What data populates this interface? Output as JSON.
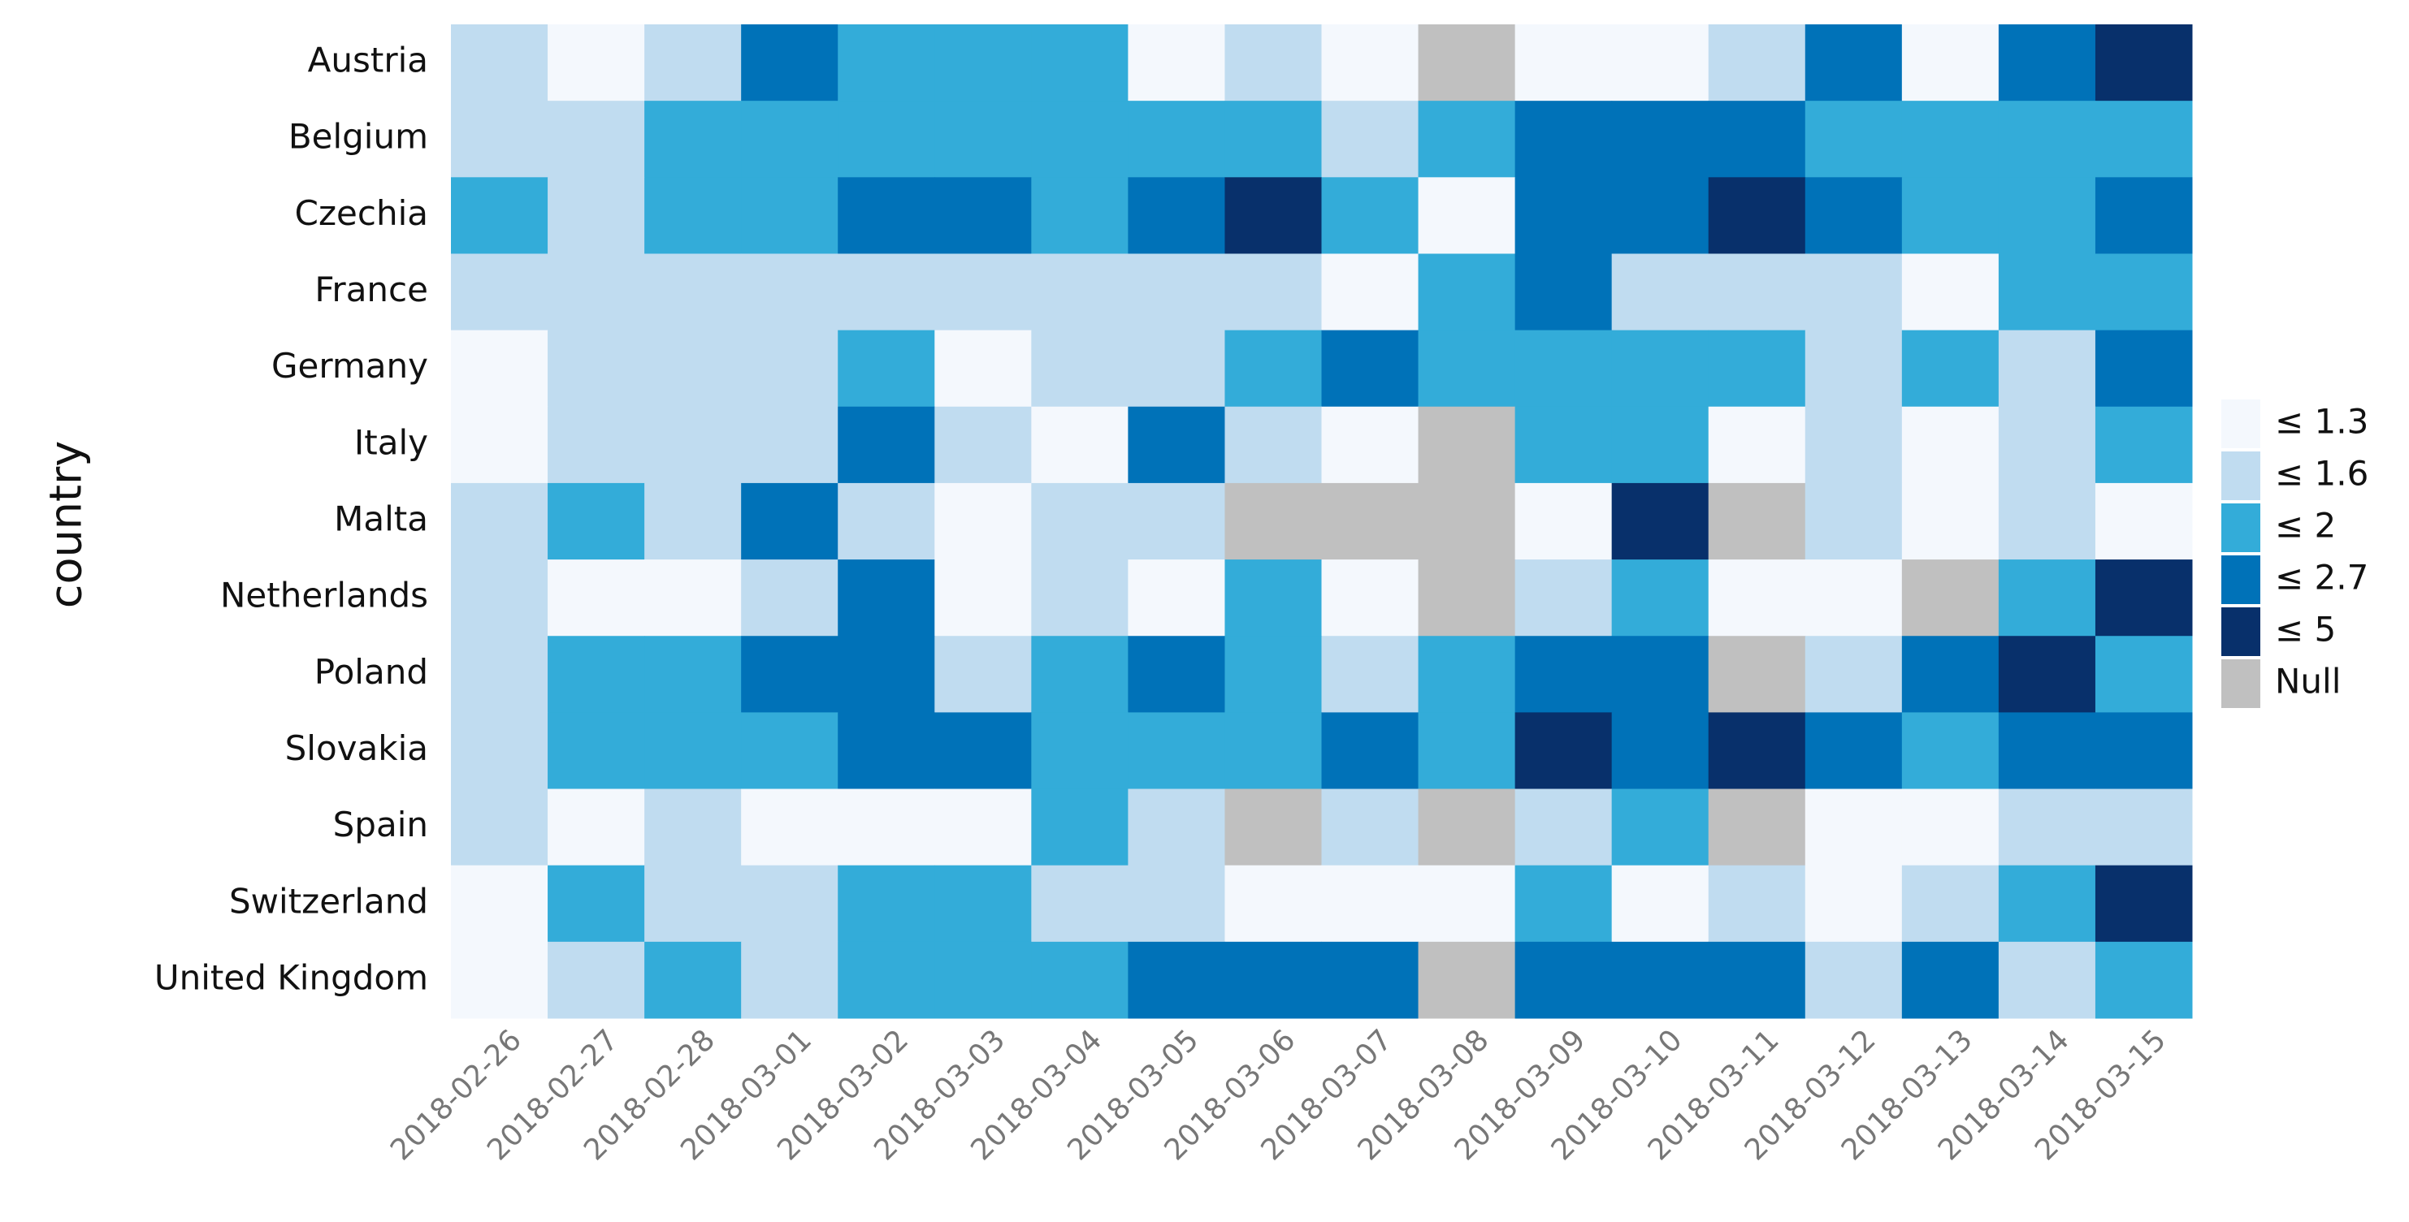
{
  "chart_data": {
    "type": "heatmap",
    "y_label": "country",
    "x": [
      "2018-02-26",
      "2018-02-27",
      "2018-02-28",
      "2018-03-01",
      "2018-03-02",
      "2018-03-03",
      "2018-03-04",
      "2018-03-05",
      "2018-03-06",
      "2018-03-07",
      "2018-03-08",
      "2018-03-09",
      "2018-03-10",
      "2018-03-11",
      "2018-03-12",
      "2018-03-13",
      "2018-03-14",
      "2018-03-15"
    ],
    "y": [
      "Austria",
      "Belgium",
      "Czechia",
      "France",
      "Germany",
      "Italy",
      "Malta",
      "Netherlands",
      "Poland",
      "Slovakia",
      "Spain",
      "Switzerland",
      "United Kingdom"
    ],
    "values": [
      [
        1.6,
        1.3,
        1.6,
        2.7,
        2,
        2,
        2,
        1.3,
        1.6,
        1.3,
        null,
        1.3,
        1.3,
        1.6,
        2.7,
        1.3,
        2.7,
        5
      ],
      [
        1.6,
        1.6,
        2,
        2,
        2,
        2,
        2,
        2,
        2,
        1.6,
        2,
        2.7,
        2.7,
        2.7,
        2,
        2,
        2,
        2
      ],
      [
        2,
        1.6,
        2,
        2,
        2.7,
        2.7,
        2,
        2.7,
        5,
        2,
        1.3,
        2.7,
        2.7,
        5,
        2.7,
        2,
        2,
        2.7
      ],
      [
        1.6,
        1.6,
        1.6,
        1.6,
        1.6,
        1.6,
        1.6,
        1.6,
        1.6,
        1.3,
        2,
        2.7,
        1.6,
        1.6,
        1.6,
        1.3,
        2,
        2
      ],
      [
        1.3,
        1.6,
        1.6,
        1.6,
        2,
        1.3,
        1.6,
        1.6,
        2,
        2.7,
        2,
        2,
        2,
        2,
        1.6,
        2,
        1.6,
        2.7
      ],
      [
        1.3,
        1.6,
        1.6,
        1.6,
        2.7,
        1.6,
        1.3,
        2.7,
        1.6,
        1.3,
        null,
        2,
        2,
        1.3,
        1.6,
        1.3,
        1.6,
        2
      ],
      [
        1.6,
        2,
        1.6,
        2.7,
        1.6,
        1.3,
        1.6,
        1.6,
        null,
        null,
        null,
        1.3,
        5,
        null,
        1.6,
        1.3,
        1.6,
        1.3
      ],
      [
        1.6,
        1.3,
        1.3,
        1.6,
        2.7,
        1.3,
        1.6,
        1.3,
        2,
        1.3,
        null,
        1.6,
        2,
        1.3,
        1.3,
        null,
        2,
        5
      ],
      [
        1.6,
        2,
        2,
        2.7,
        2.7,
        1.6,
        2,
        2.7,
        2,
        1.6,
        2,
        2.7,
        2.7,
        null,
        1.6,
        2.7,
        5,
        2
      ],
      [
        1.6,
        2,
        2,
        2,
        2.7,
        2.7,
        2,
        2,
        2,
        2.7,
        2,
        5,
        2.7,
        5,
        2.7,
        2,
        2.7,
        2.7
      ],
      [
        1.6,
        1.3,
        1.6,
        1.3,
        1.3,
        1.3,
        2,
        1.6,
        null,
        1.6,
        null,
        1.6,
        2,
        null,
        1.3,
        1.3,
        1.6,
        1.6
      ],
      [
        1.3,
        2,
        1.6,
        1.6,
        2,
        2,
        1.6,
        1.6,
        1.3,
        1.3,
        1.3,
        2,
        1.3,
        1.6,
        1.3,
        1.6,
        2,
        5
      ],
      [
        1.3,
        1.6,
        2,
        1.6,
        2,
        2,
        2,
        2.7,
        2.7,
        2.7,
        null,
        2.7,
        2.7,
        2.7,
        1.6,
        2.7,
        1.6,
        2
      ]
    ],
    "legend": [
      {
        "value": 1.3,
        "label": "≤ 1.3",
        "color": "#f4f8fd"
      },
      {
        "value": 1.6,
        "label": "≤ 1.6",
        "color": "#c0dcf0"
      },
      {
        "value": 2,
        "label": "≤ 2",
        "color": "#33acd9"
      },
      {
        "value": 2.7,
        "label": "≤ 2.7",
        "color": "#0072b8"
      },
      {
        "value": 5,
        "label": "≤ 5",
        "color": "#08306b"
      },
      {
        "label": "Null",
        "color": "#c0c0c0"
      }
    ]
  }
}
